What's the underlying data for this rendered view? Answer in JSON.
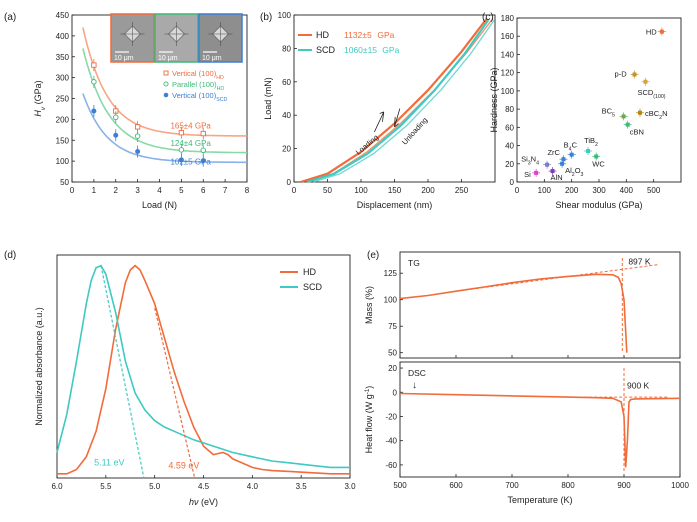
{
  "colors": {
    "hd": "#f26b3a",
    "hd_light": "#f7a585",
    "scd": "#3ec9c3",
    "vertical_hd": "#f26b3a",
    "parallel_hd": "#3cb878",
    "vertical_scd": "#3b7fd6",
    "axis": "#222222",
    "insert_frame_1": "#f26b3a",
    "insert_frame_2": "#3cb878",
    "insert_frame_3": "#3b7fd6"
  },
  "chart_data": [
    {
      "panel": "(a)",
      "type": "scatter",
      "xlabel": "Load (N)",
      "ylabel": "Hv (GPa)",
      "xlim": [
        0,
        8
      ],
      "ylim": [
        50,
        450
      ],
      "xticks": [
        "0",
        "1",
        "2",
        "3",
        "4",
        "5",
        "6",
        "7",
        "8"
      ],
      "yticks": [
        "50",
        "100",
        "150",
        "200",
        "250",
        "300",
        "350",
        "400",
        "450"
      ],
      "inset_scale": [
        "10 μm",
        "10 μm",
        "10 μm"
      ],
      "series": [
        {
          "name": "Vertical (100)",
          "subscript": "HD",
          "marker": "open-square",
          "color_key": "vertical_hd",
          "x": [
            1,
            2,
            3,
            5,
            6
          ],
          "y": [
            330,
            220,
            182,
            168,
            166
          ],
          "fit_label": "165±4 GPa"
        },
        {
          "name": "Parallel (100)",
          "subscript": "HD",
          "marker": "open-circle",
          "color_key": "parallel_hd",
          "x": [
            1,
            2,
            3,
            5,
            6
          ],
          "y": [
            290,
            205,
            160,
            127,
            126
          ],
          "fit_label": "124±4 GPa"
        },
        {
          "name": "Vertical (100)",
          "subscript": "SCD",
          "marker": "filled-circle",
          "color_key": "vertical_scd",
          "x": [
            1,
            2,
            3,
            5,
            6
          ],
          "y": [
            220,
            162,
            123,
            103,
            101
          ],
          "fit_label": "102±5 GPa"
        }
      ],
      "fits": [
        {
          "asymptote": 160,
          "A": 260,
          "k": 0.9
        },
        {
          "asymptote": 120,
          "A": 250,
          "k": 0.85
        },
        {
          "asymptote": 97,
          "A": 165,
          "k": 0.9
        }
      ]
    },
    {
      "panel": "(b)",
      "type": "line",
      "xlabel": "Displacement (nm)",
      "ylabel": "Load (mN)",
      "xlim": [
        0,
        300
      ],
      "ylim": [
        0,
        100
      ],
      "xticks": [
        "0",
        "50",
        "100",
        "150",
        "200",
        "250"
      ],
      "yticks": [
        "0",
        "20",
        "40",
        "60",
        "80",
        "100"
      ],
      "legend": [
        {
          "name": "HD",
          "value": "1132±5",
          "unit": "GPa",
          "color_key": "hd"
        },
        {
          "name": "SCD",
          "value": "1060±15",
          "unit": "GPa",
          "color_key": "scd"
        }
      ],
      "annotations": [
        "Loading",
        "Unloading"
      ],
      "series": [
        {
          "name": "HD",
          "x": [
            10,
            50,
            100,
            150,
            200,
            250,
            288
          ],
          "y": [
            0,
            5,
            18,
            35,
            55,
            78,
            98
          ]
        },
        {
          "name": "SCD",
          "x": [
            20,
            60,
            110,
            160,
            210,
            255,
            290
          ],
          "y": [
            0,
            5,
            17,
            34,
            55,
            77,
            97
          ]
        }
      ]
    },
    {
      "panel": "(c)",
      "type": "scatter",
      "xlabel": "Shear modulus (GPa)",
      "ylabel": "Hardness (GPa)",
      "xlim": [
        0,
        600
      ],
      "ylim": [
        0,
        180
      ],
      "xticks": [
        "0",
        "100",
        "200",
        "300",
        "400",
        "500"
      ],
      "yticks": [
        "0",
        "20",
        "40",
        "60",
        "80",
        "100",
        "120",
        "140",
        "160",
        "180"
      ],
      "points": [
        {
          "label": "HD",
          "x": 530,
          "y": 165,
          "color": "#f26b3a"
        },
        {
          "label": "p-D",
          "x": 430,
          "y": 118,
          "color": "#c8912a"
        },
        {
          "label": "SCD(100)",
          "x": 470,
          "y": 110,
          "color": "#d8a23a"
        },
        {
          "label": "BC5",
          "x": 390,
          "y": 72,
          "color": "#6aa84f"
        },
        {
          "label": "cBC2N",
          "x": 450,
          "y": 76,
          "color": "#b8860b"
        },
        {
          "label": "cBN",
          "x": 405,
          "y": 63,
          "color": "#3cb878"
        },
        {
          "label": "B4C",
          "x": 200,
          "y": 30,
          "color": "#3b7fd6"
        },
        {
          "label": "TiB2",
          "x": 260,
          "y": 34,
          "color": "#3ec9c3"
        },
        {
          "label": "ZrC",
          "x": 170,
          "y": 25,
          "color": "#3b7fd6"
        },
        {
          "label": "WC",
          "x": 290,
          "y": 28,
          "color": "#3cb878"
        },
        {
          "label": "Si3N4",
          "x": 110,
          "y": 19,
          "color": "#7a7acc"
        },
        {
          "label": "Al2O3",
          "x": 165,
          "y": 20,
          "color": "#3b7fd6"
        },
        {
          "label": "AlN",
          "x": 130,
          "y": 12,
          "color": "#7a3fb8"
        },
        {
          "label": "Si",
          "x": 70,
          "y": 10,
          "color": "#e040d0"
        }
      ]
    },
    {
      "panel": "(d)",
      "type": "line",
      "xlabel": "hν (eV)",
      "ylabel": "Normalized absorbance (a.u.)",
      "xlim": [
        6.0,
        3.0
      ],
      "ylim": [
        0,
        1.05
      ],
      "xticks": [
        "6.0",
        "5.5",
        "5.0",
        "4.5",
        "4.0",
        "3.5",
        "3.0"
      ],
      "legend": [
        {
          "name": "HD",
          "color_key": "hd"
        },
        {
          "name": "SCD",
          "color_key": "scd"
        }
      ],
      "gap_labels": [
        {
          "text": "5.11 eV",
          "x": 5.11,
          "color_key": "scd"
        },
        {
          "text": "4.59 eV",
          "x": 4.59,
          "color_key": "hd"
        }
      ],
      "series": [
        {
          "name": "HD",
          "x": [
            6.0,
            5.9,
            5.8,
            5.7,
            5.6,
            5.5,
            5.4,
            5.3,
            5.25,
            5.2,
            5.15,
            5.1,
            5.0,
            4.9,
            4.8,
            4.7,
            4.6,
            4.5,
            4.4,
            4.3,
            4.25,
            4.2,
            4.1,
            4.0,
            3.9,
            3.8,
            3.6,
            3.4,
            3.2,
            3.0
          ],
          "y": [
            0.02,
            0.02,
            0.04,
            0.1,
            0.22,
            0.42,
            0.7,
            0.92,
            0.98,
            1.0,
            0.98,
            0.93,
            0.82,
            0.66,
            0.5,
            0.36,
            0.24,
            0.15,
            0.11,
            0.12,
            0.11,
            0.09,
            0.07,
            0.05,
            0.04,
            0.035,
            0.03,
            0.025,
            0.02,
            0.02
          ]
        },
        {
          "name": "SCD",
          "x": [
            6.0,
            5.9,
            5.8,
            5.7,
            5.65,
            5.6,
            5.55,
            5.5,
            5.4,
            5.3,
            5.2,
            5.1,
            5.0,
            4.9,
            4.8,
            4.6,
            4.4,
            4.2,
            4.0,
            3.8,
            3.6,
            3.4,
            3.2,
            3.0
          ],
          "y": [
            0.12,
            0.3,
            0.55,
            0.82,
            0.93,
            0.99,
            1.0,
            0.96,
            0.78,
            0.55,
            0.4,
            0.32,
            0.27,
            0.24,
            0.22,
            0.18,
            0.15,
            0.12,
            0.1,
            0.08,
            0.07,
            0.06,
            0.05,
            0.05
          ]
        }
      ],
      "tangents": [
        {
          "color_key": "scd",
          "x": [
            5.55,
            5.11
          ],
          "y": [
            1.0,
            0.0
          ]
        },
        {
          "color_key": "hd",
          "x": [
            5.0,
            4.59
          ],
          "y": [
            0.8,
            0.0
          ]
        }
      ]
    },
    {
      "panel": "(e)",
      "type": "line",
      "xlabel": "Temperature (K)",
      "xlim": [
        500,
        1000
      ],
      "xticks": [
        "500",
        "600",
        "700",
        "800",
        "900",
        "1000"
      ],
      "subplots": [
        {
          "label": "TG",
          "ylabel": "Mass (%)",
          "ylim": [
            45,
            145
          ],
          "yticks": [
            "50",
            "75",
            "100",
            "125"
          ],
          "onset_label": "897 K",
          "onset_x": 897,
          "x": [
            500,
            550,
            600,
            650,
            700,
            750,
            800,
            850,
            880,
            890,
            895,
            900,
            903,
            905
          ],
          "y": [
            101,
            104,
            108,
            112,
            116,
            119.5,
            122,
            124,
            123.5,
            121,
            115,
            100,
            70,
            50
          ]
        },
        {
          "label": "DSC",
          "ylabel": "Heat flow (W g⁻¹)",
          "ylim": [
            -70,
            25
          ],
          "yticks": [
            "20",
            "0",
            "-20",
            "-40",
            "-60"
          ],
          "onset_label": "900 K",
          "onset_x": 900,
          "arrow_label": "↓",
          "x": [
            500,
            600,
            700,
            800,
            850,
            880,
            895,
            900,
            903,
            906,
            909,
            912,
            920,
            1000
          ],
          "y": [
            -1,
            -2,
            -3,
            -4,
            -4.5,
            -5,
            -8,
            -20,
            -62,
            -40,
            -8,
            -6,
            -5.5,
            -5
          ]
        }
      ]
    }
  ]
}
